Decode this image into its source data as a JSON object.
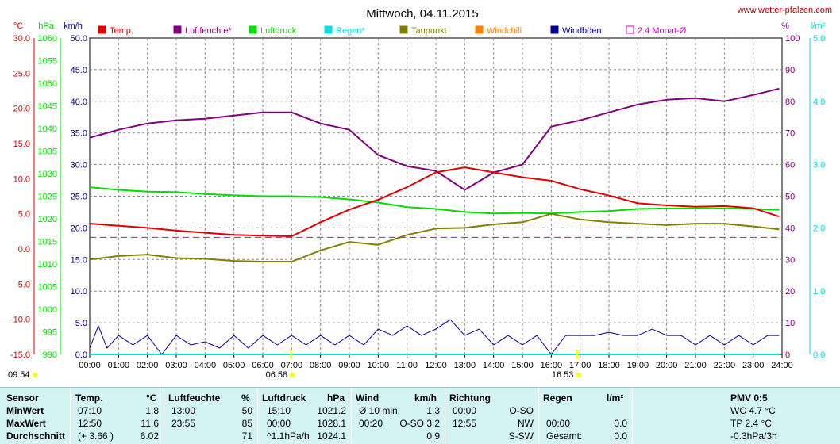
{
  "title": "Mittwoch, 04.11.2015",
  "source": "www.wetter-pfalzen.com",
  "units": {
    "left": [
      "°C",
      "hPa",
      "km/h"
    ],
    "right": [
      "%",
      "l/m²"
    ]
  },
  "colors": {
    "temp": "#e00000",
    "humidity": "#800080",
    "pressure": "#00dd00",
    "rain": "#00e0e0",
    "dewpoint": "#808000",
    "windchill": "#ff8000",
    "gust": "#000090",
    "avg": "#cc00cc"
  },
  "legend": [
    {
      "label": "Temp.",
      "color": "#e00000",
      "style": "filled"
    },
    {
      "label": "Luftfeuchte*",
      "color": "#800080",
      "style": "filled"
    },
    {
      "label": "Luftdruck",
      "color": "#00dd00",
      "style": "filled"
    },
    {
      "label": "Regen*",
      "color": "#00e0e0",
      "style": "filled"
    },
    {
      "label": "Taupunkt",
      "color": "#808000",
      "style": "filled"
    },
    {
      "label": "Windchill",
      "color": "#ff8000",
      "style": "filled"
    },
    {
      "label": "Windböen",
      "color": "#000090",
      "style": "filled"
    },
    {
      "label": "2.4 Monat-Ø",
      "color": "#cc00cc",
      "style": "outline"
    }
  ],
  "sun": {
    "rise": "06:58",
    "set": "16:53",
    "now": "09:54"
  },
  "chart_data": {
    "type": "line",
    "x_ticks": [
      "00:00",
      "01:00",
      "02:00",
      "03:00",
      "04:00",
      "05:00",
      "06:00",
      "07:00",
      "08:00",
      "09:00",
      "10:00",
      "11:00",
      "12:00",
      "13:00",
      "14:00",
      "15:00",
      "16:00",
      "17:00",
      "18:00",
      "19:00",
      "20:00",
      "21:00",
      "22:00",
      "23:00",
      "24:00"
    ],
    "axes": {
      "temp": {
        "unit": "°C",
        "range": [
          -15,
          30
        ],
        "ticks": [
          "30.0",
          "25.0",
          "20.0",
          "15.0",
          "10.0",
          "5.0",
          "0.0",
          "-5.0",
          "-10.0",
          "-15.0"
        ]
      },
      "pressure": {
        "unit": "hPa",
        "range": [
          990,
          1060
        ],
        "ticks": [
          "1060",
          "1055",
          "1050",
          "1045",
          "1040",
          "1035",
          "1030",
          "1025",
          "1020",
          "1015",
          "1010",
          "1005",
          "1000",
          "995",
          "990"
        ]
      },
      "wind": {
        "unit": "km/h",
        "range": [
          0,
          50
        ],
        "ticks": [
          "50.0",
          "45.0",
          "40.0",
          "35.0",
          "30.0",
          "25.0",
          "20.0",
          "15.0",
          "10.0",
          "5.0",
          "0.0"
        ]
      },
      "humidity": {
        "unit": "%",
        "range": [
          0,
          100
        ],
        "ticks": [
          "100",
          "90",
          "80",
          "70",
          "60",
          "50",
          "40",
          "30",
          "20",
          "10",
          "0"
        ]
      },
      "rain": {
        "unit": "l/m²",
        "range": [
          0,
          5
        ],
        "ticks": [
          "5.0",
          "4.0",
          "3.0",
          "2.0",
          "1.0",
          "0.0"
        ]
      }
    },
    "series": [
      {
        "name": "Luftfeuchte*",
        "axis": "humidity",
        "points": [
          [
            0,
            68.5
          ],
          [
            1,
            71
          ],
          [
            2,
            73
          ],
          [
            3,
            74
          ],
          [
            4,
            74.5
          ],
          [
            5,
            75.5
          ],
          [
            6,
            76.5
          ],
          [
            7,
            76.5
          ],
          [
            8,
            73
          ],
          [
            9,
            71
          ],
          [
            10,
            63
          ],
          [
            11,
            59.5
          ],
          [
            12,
            58
          ],
          [
            13,
            52
          ],
          [
            14,
            57.5
          ],
          [
            15,
            60
          ],
          [
            16,
            72
          ],
          [
            17,
            74
          ],
          [
            18,
            76.5
          ],
          [
            19,
            79
          ],
          [
            20,
            80.5
          ],
          [
            21,
            81
          ],
          [
            22,
            80
          ],
          [
            23,
            82
          ],
          [
            23.9,
            84
          ]
        ]
      },
      {
        "name": "Luftdruck",
        "axis": "pressure",
        "points": [
          [
            0,
            1027
          ],
          [
            1,
            1026.4
          ],
          [
            2,
            1026
          ],
          [
            3,
            1025.9
          ],
          [
            4,
            1025.5
          ],
          [
            5,
            1025.2
          ],
          [
            6,
            1025
          ],
          [
            7,
            1025
          ],
          [
            8,
            1024.8
          ],
          [
            9,
            1024.3
          ],
          [
            10,
            1023.6
          ],
          [
            11,
            1022.6
          ],
          [
            12,
            1022.2
          ],
          [
            13,
            1021.5
          ],
          [
            14,
            1021.2
          ],
          [
            15,
            1021.3
          ],
          [
            16,
            1021.2
          ],
          [
            17,
            1021.5
          ],
          [
            18,
            1021.7
          ],
          [
            19,
            1022.2
          ],
          [
            20,
            1022.3
          ],
          [
            21,
            1022.3
          ],
          [
            22,
            1022.3
          ],
          [
            23,
            1022.2
          ],
          [
            23.9,
            1022
          ]
        ]
      },
      {
        "name": "Temp.",
        "axis": "temp",
        "points": [
          [
            0,
            3.6
          ],
          [
            1,
            3.3
          ],
          [
            2,
            3.0
          ],
          [
            3,
            2.6
          ],
          [
            4,
            2.3
          ],
          [
            5,
            2.0
          ],
          [
            6,
            1.9
          ],
          [
            7,
            1.8
          ],
          [
            8,
            3.8
          ],
          [
            9,
            5.6
          ],
          [
            10,
            7.0
          ],
          [
            11,
            8.8
          ],
          [
            12,
            10.9
          ],
          [
            13,
            11.6
          ],
          [
            14,
            10.9
          ],
          [
            15,
            10.2
          ],
          [
            16,
            9.7
          ],
          [
            17,
            8.5
          ],
          [
            18,
            7.6
          ],
          [
            19,
            6.5
          ],
          [
            20,
            6.2
          ],
          [
            21,
            6.0
          ],
          [
            22,
            6.1
          ],
          [
            23,
            5.8
          ],
          [
            23.9,
            4.6
          ]
        ]
      },
      {
        "name": "Taupunkt",
        "axis": "temp",
        "points": [
          [
            0,
            -1.5
          ],
          [
            1,
            -1.0
          ],
          [
            2,
            -0.8
          ],
          [
            3,
            -1.3
          ],
          [
            4,
            -1.4
          ],
          [
            5,
            -1.7
          ],
          [
            6,
            -1.8
          ],
          [
            7,
            -1.8
          ],
          [
            8,
            -0.2
          ],
          [
            9,
            1.0
          ],
          [
            10,
            0.6
          ],
          [
            11,
            2.0
          ],
          [
            12,
            2.9
          ],
          [
            13,
            3.0
          ],
          [
            14,
            3.5
          ],
          [
            15,
            3.8
          ],
          [
            16,
            5.0
          ],
          [
            17,
            4.2
          ],
          [
            18,
            3.8
          ],
          [
            19,
            3.6
          ],
          [
            20,
            3.4
          ],
          [
            21,
            3.6
          ],
          [
            22,
            3.6
          ],
          [
            23,
            3.2
          ],
          [
            23.9,
            2.8
          ]
        ]
      },
      {
        "name": "Windböen",
        "axis": "wind",
        "points": [
          [
            0,
            1
          ],
          [
            0.3,
            4.5
          ],
          [
            0.6,
            1
          ],
          [
            1,
            3
          ],
          [
            1.5,
            1.5
          ],
          [
            2,
            3
          ],
          [
            2.5,
            0
          ],
          [
            3,
            3
          ],
          [
            3.5,
            1.5
          ],
          [
            4,
            2
          ],
          [
            4.5,
            1
          ],
          [
            5,
            3
          ],
          [
            5.5,
            1
          ],
          [
            6,
            3
          ],
          [
            6.5,
            1.5
          ],
          [
            7,
            3
          ],
          [
            7.5,
            1.5
          ],
          [
            8,
            3
          ],
          [
            8.5,
            1.5
          ],
          [
            9,
            3
          ],
          [
            9.5,
            1.5
          ],
          [
            10,
            4
          ],
          [
            10.5,
            3
          ],
          [
            11,
            4.5
          ],
          [
            11.5,
            3
          ],
          [
            12,
            4
          ],
          [
            12.5,
            5.5
          ],
          [
            13,
            3
          ],
          [
            13.5,
            4
          ],
          [
            14,
            1.5
          ],
          [
            14.5,
            3
          ],
          [
            15,
            1.5
          ],
          [
            15.5,
            3
          ],
          [
            16,
            0
          ],
          [
            16.5,
            3
          ],
          [
            17,
            3
          ],
          [
            17.5,
            3
          ],
          [
            18,
            3.5
          ],
          [
            18.5,
            3
          ],
          [
            19,
            3
          ],
          [
            19.5,
            4
          ],
          [
            20,
            3
          ],
          [
            20.5,
            3
          ],
          [
            21,
            1.5
          ],
          [
            21.5,
            3
          ],
          [
            22,
            1.5
          ],
          [
            22.5,
            3
          ],
          [
            23,
            1.5
          ],
          [
            23.5,
            3
          ],
          [
            23.9,
            3
          ]
        ]
      },
      {
        "name": "Regen*",
        "axis": "rain",
        "points": [
          [
            0,
            0
          ],
          [
            23.9,
            0
          ]
        ]
      },
      {
        "name": "2.4 Monat-Ø",
        "axis": "wind",
        "points": [
          [
            0,
            18.5
          ],
          [
            24,
            18.5
          ]
        ]
      }
    ]
  },
  "table": {
    "headers": {
      "sensor": "Sensor",
      "temp": "Temp.",
      "temp_unit": "°C",
      "hum": "Luftfeuchte",
      "hum_unit": "%",
      "press": "Luftdruck",
      "press_unit": "hPa",
      "wind": "Wind",
      "wind_unit": "km/h",
      "dir": "Richtung",
      "rain": "Regen",
      "rain_unit": "l/m²",
      "pmv": "PMV 0:5"
    },
    "rows": [
      {
        "label": "MinWert",
        "temp_t": "07:10",
        "temp_v": "1.8",
        "hum_t": "13:00",
        "hum_v": "50",
        "press_t": "15:10",
        "press_v": "1021.2",
        "wind_t": "Ø 10 min.",
        "wind_v": "1.3",
        "dir_t": "00:00",
        "dir_v": "O-SO",
        "rain_t": "",
        "rain_v": "",
        "pmv": "WC 4.7 °C"
      },
      {
        "label": "MaxWert",
        "temp_t": "12:50",
        "temp_v": "11.6",
        "hum_t": "23:55",
        "hum_v": "85",
        "press_t": "00:00",
        "press_v": "1028.1",
        "wind_t": "00:20",
        "wind_v": "O-SO 3.2",
        "dir_t": "12:55",
        "dir_v": "NW",
        "rain_t": "00:00",
        "rain_v": "0.0",
        "pmv": "TP 2.4 °C"
      },
      {
        "label": "Durchschnitt",
        "temp_t": "(+ 3.66 )",
        "temp_v": "6.02",
        "hum_t": "",
        "hum_v": "71",
        "press_t": "^1.1hPa/h",
        "press_v": "1024.1",
        "wind_t": "",
        "wind_v": "0.9",
        "dir_t": "",
        "dir_v": "S-SW",
        "rain_t": "Gesamt:",
        "rain_v": "0.0",
        "pmv": "-0.3hPa/3h"
      }
    ]
  }
}
